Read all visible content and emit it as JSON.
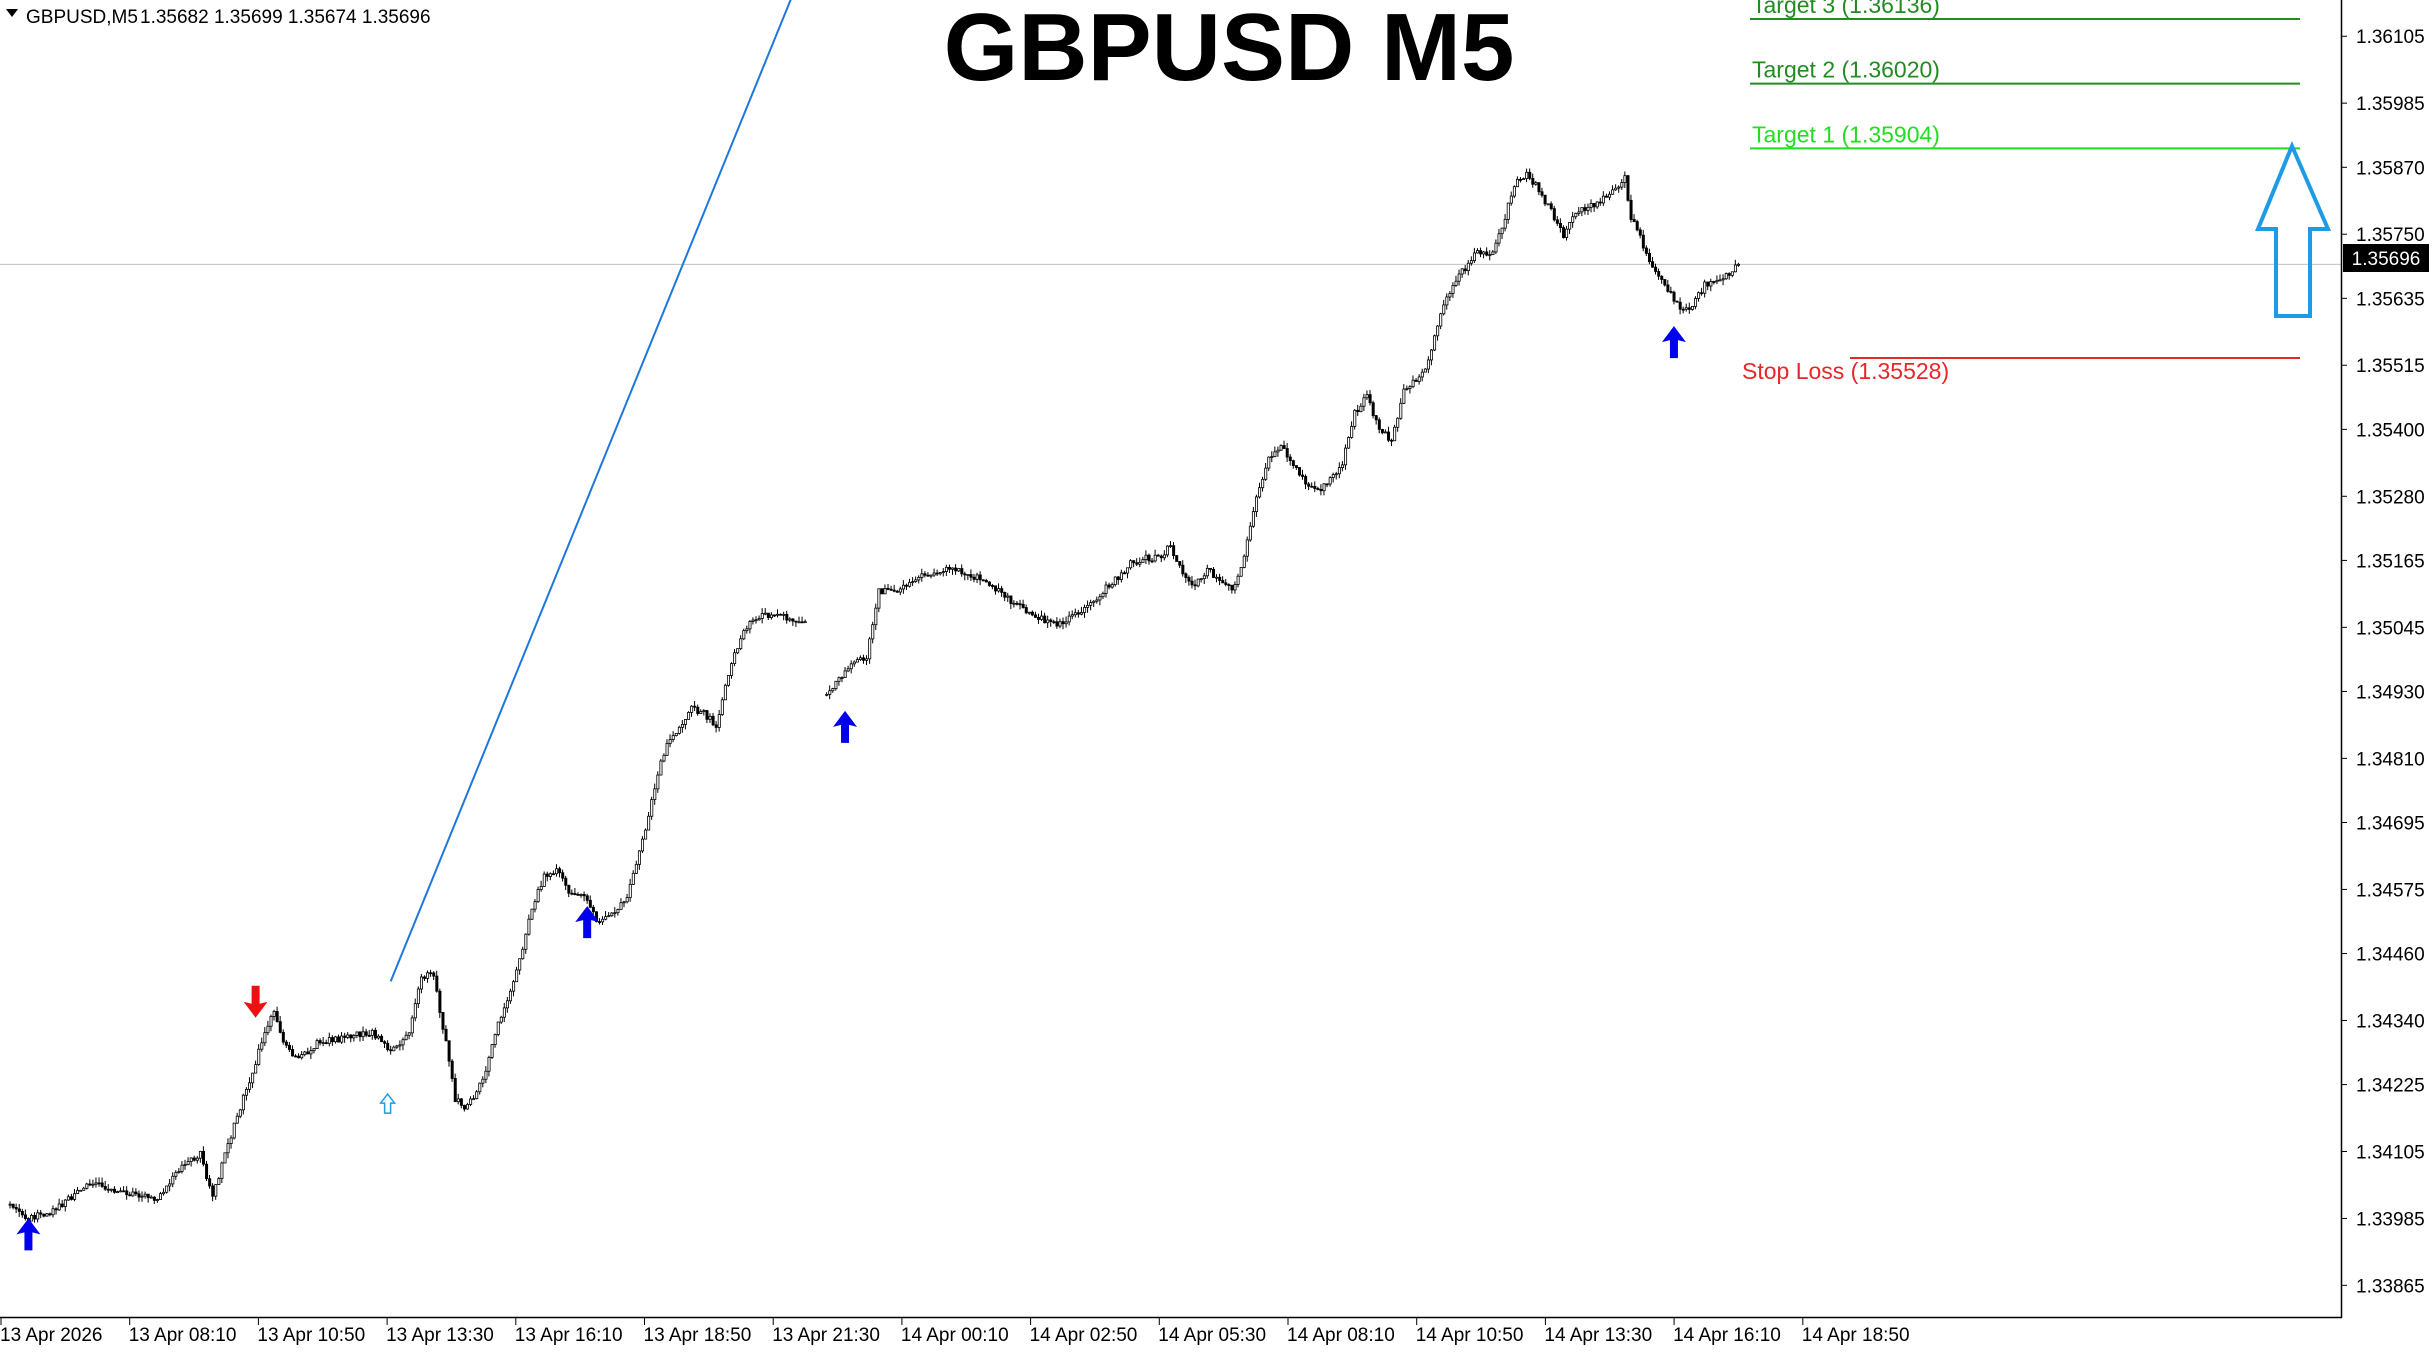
{
  "header": {
    "symbol_label": "GBPUSD,M5",
    "ohlc": "1.35682 1.35699 1.35674 1.35696"
  },
  "chart_data": {
    "type": "candlestick",
    "title": "GBPUSD M5",
    "symbol": "GBPUSD",
    "timeframe": "M5",
    "quote": {
      "open": 1.35682,
      "high": 1.35699,
      "low": 1.35674,
      "close": 1.35696
    },
    "current_price": 1.35696,
    "current_price_label": "1.35696",
    "ylim": [
      1.3381,
      1.3617
    ],
    "y_ticks": [
      "1.36105",
      "1.35985",
      "1.35870",
      "1.35750",
      "1.35635",
      "1.35515",
      "1.35400",
      "1.35280",
      "1.35165",
      "1.35045",
      "1.34930",
      "1.34810",
      "1.34695",
      "1.34575",
      "1.34460",
      "1.34340",
      "1.34225",
      "1.34105",
      "1.33985",
      "1.33865"
    ],
    "x_ticks": [
      "13 Apr 2026",
      "13 Apr 08:10",
      "13 Apr 10:50",
      "13 Apr 13:30",
      "13 Apr 16:10",
      "13 Apr 18:50",
      "13 Apr 21:30",
      "14 Apr 00:10",
      "14 Apr 02:50",
      "14 Apr 05:30",
      "14 Apr 08:10",
      "14 Apr 10:50",
      "14 Apr 13:30",
      "14 Apr 16:10",
      "14 Apr 18:50"
    ],
    "price_path": [
      [
        0,
        1.3401
      ],
      [
        6,
        1.33985
      ],
      [
        15,
        1.34
      ],
      [
        25,
        1.3405
      ],
      [
        38,
        1.3403
      ],
      [
        48,
        1.3402
      ],
      [
        56,
        1.3408
      ],
      [
        62,
        1.341
      ],
      [
        66,
        1.3402
      ],
      [
        70,
        1.341
      ],
      [
        76,
        1.342
      ],
      [
        82,
        1.343
      ],
      [
        86,
        1.34355
      ],
      [
        90,
        1.3429
      ],
      [
        94,
        1.3427
      ],
      [
        100,
        1.343
      ],
      [
        110,
        1.3431
      ],
      [
        118,
        1.3432
      ],
      [
        124,
        1.3428
      ],
      [
        130,
        1.3432
      ],
      [
        134,
        1.3442
      ],
      [
        138,
        1.3442
      ],
      [
        142,
        1.343
      ],
      [
        145,
        1.342
      ],
      [
        148,
        1.3418
      ],
      [
        154,
        1.3423
      ],
      [
        158,
        1.3432
      ],
      [
        162,
        1.3438
      ],
      [
        166,
        1.3445
      ],
      [
        170,
        1.3454
      ],
      [
        174,
        1.346
      ],
      [
        178,
        1.3461
      ],
      [
        182,
        1.3457
      ],
      [
        187,
        1.3456
      ],
      [
        191,
        1.3452
      ],
      [
        196,
        1.3453
      ],
      [
        201,
        1.3456
      ],
      [
        206,
        1.3466
      ],
      [
        210,
        1.3476
      ],
      [
        214,
        1.3484
      ],
      [
        218,
        1.3486
      ],
      [
        222,
        1.349
      ],
      [
        226,
        1.3489
      ],
      [
        230,
        1.3487
      ],
      [
        234,
        1.3496
      ],
      [
        238,
        1.3503
      ],
      [
        242,
        1.3506
      ],
      [
        248,
        1.3507
      ],
      [
        255,
        1.3506
      ],
      [
        260,
        1.3505
      ],
      [
        262,
        null
      ],
      [
        266,
        1.3492
      ],
      [
        270,
        1.3495
      ],
      [
        274,
        1.3498
      ],
      [
        279,
        1.3499
      ],
      [
        283,
        1.3511
      ],
      [
        288,
        1.3511
      ],
      [
        294,
        1.3513
      ],
      [
        299,
        1.3514
      ],
      [
        306,
        1.3515
      ],
      [
        312,
        1.3514
      ],
      [
        318,
        1.3513
      ],
      [
        324,
        1.351
      ],
      [
        330,
        1.3508
      ],
      [
        336,
        1.3506
      ],
      [
        342,
        1.3505
      ],
      [
        348,
        1.3507
      ],
      [
        354,
        1.351
      ],
      [
        360,
        1.3513
      ],
      [
        365,
        1.3516
      ],
      [
        370,
        1.3517
      ],
      [
        374,
        1.3517
      ],
      [
        378,
        1.3519
      ],
      [
        382,
        1.3514
      ],
      [
        386,
        1.3512
      ],
      [
        390,
        1.3515
      ],
      [
        394,
        1.3513
      ],
      [
        398,
        1.3511
      ],
      [
        402,
        1.3517
      ],
      [
        406,
        1.3528
      ],
      [
        410,
        1.3535
      ],
      [
        414,
        1.3537
      ],
      [
        418,
        1.3534
      ],
      [
        422,
        1.353
      ],
      [
        426,
        1.3529
      ],
      [
        430,
        1.3531
      ],
      [
        434,
        1.3534
      ],
      [
        438,
        1.3543
      ],
      [
        442,
        1.3546
      ],
      [
        446,
        1.354
      ],
      [
        450,
        1.3538
      ],
      [
        454,
        1.3547
      ],
      [
        458,
        1.3549
      ],
      [
        462,
        1.3552
      ],
      [
        466,
        1.3561
      ],
      [
        470,
        1.3566
      ],
      [
        474,
        1.3569
      ],
      [
        478,
        1.3572
      ],
      [
        482,
        1.3571
      ],
      [
        486,
        1.3576
      ],
      [
        490,
        1.3584
      ],
      [
        494,
        1.3586
      ],
      [
        498,
        1.3583
      ],
      [
        502,
        1.3579
      ],
      [
        506,
        1.3575
      ],
      [
        510,
        1.3579
      ],
      [
        514,
        1.358
      ],
      [
        518,
        1.3581
      ],
      [
        522,
        1.3583
      ],
      [
        526,
        1.3585
      ],
      [
        528,
        1.3578
      ],
      [
        532,
        1.3573
      ],
      [
        536,
        1.3568
      ],
      [
        540,
        1.3565
      ],
      [
        544,
        1.3562
      ],
      [
        548,
        1.3562
      ],
      [
        552,
        1.3566
      ],
      [
        556,
        1.3567
      ],
      [
        560,
        1.3568
      ],
      [
        563,
        1.35696
      ]
    ],
    "levels": [
      {
        "label": "Target 3 (1.36136)",
        "value": 1.36136,
        "color": "#228b22"
      },
      {
        "label": "Target 2 (1.36020)",
        "value": 1.3602,
        "color": "#228b22"
      },
      {
        "label": "Target 1 (1.35904)",
        "value": 1.35904,
        "color": "#22dd22"
      },
      {
        "label": "Stop Loss (1.35528)",
        "value": 1.35528,
        "color": "#e8262a"
      }
    ],
    "signals": [
      {
        "type": "buy",
        "bar": 6,
        "price": 1.3396
      },
      {
        "type": "sell",
        "bar": 80,
        "price": 1.3437
      },
      {
        "type": "buy-hollow",
        "bar": 123,
        "price": 1.3419
      },
      {
        "type": "buy",
        "bar": 188,
        "price": 1.3452
      },
      {
        "type": "buy",
        "bar": 272,
        "price": 1.3487
      },
      {
        "type": "buy",
        "bar": 542,
        "price": 1.3556
      }
    ],
    "trendline": {
      "from": {
        "bar": 124,
        "price": 1.3441
      },
      "to": {
        "bar": 255,
        "price": 1.3618
      },
      "color": "#1e78dc"
    },
    "big_arrow": {
      "direction": "up",
      "color": "#1e9be6"
    },
    "colors": {
      "candles": "#000000",
      "axis": "#000000",
      "price_line": "#c0c0c0"
    }
  }
}
